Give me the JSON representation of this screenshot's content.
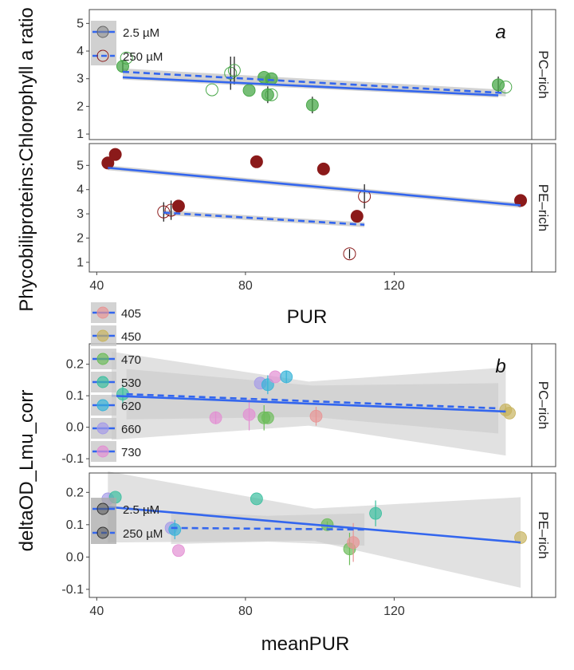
{
  "colors": {
    "trend_line": "#3366ee",
    "ribbon": "#c8c8c8",
    "ribbon_dark": "#a8a8a8",
    "pc_rich_filled": "#4aa84a",
    "pe_rich_filled": "#8b1a1a",
    "axis": "#444444",
    "text": "#222222"
  },
  "chart_data": [
    {
      "type": "scatter",
      "panel_label": "a",
      "ylabel": "Phycobiliproteins:Chlorophyll a ratio",
      "xlabel": "PUR",
      "xlim": [
        38,
        157
      ],
      "x_ticks": [
        40,
        80,
        120
      ],
      "legend": {
        "placement": "top-left",
        "entries": [
          {
            "label": "2.5 µM",
            "symbol": "filled",
            "line": "solid"
          },
          {
            "label": "250 µM",
            "symbol": "open",
            "line": "dashed"
          }
        ]
      },
      "facets": [
        {
          "strip": "PC–rich",
          "ylim": [
            0.8,
            5.5
          ],
          "y_ticks": [
            1,
            2,
            3,
            4,
            5
          ],
          "color": "#4aa84a",
          "points": [
            {
              "x": 47,
              "y": 3.45,
              "filled": true,
              "err": 0.2
            },
            {
              "x": 48,
              "y": 3.75,
              "filled": false,
              "err": 0
            },
            {
              "x": 71,
              "y": 2.6,
              "filled": false,
              "err": 0
            },
            {
              "x": 76,
              "y": 3.2,
              "filled": false,
              "err": 0.6
            },
            {
              "x": 77,
              "y": 3.3,
              "filled": false,
              "err": 0.5
            },
            {
              "x": 81,
              "y": 2.58,
              "filled": true,
              "err": 0
            },
            {
              "x": 85,
              "y": 3.05,
              "filled": true,
              "err": 0
            },
            {
              "x": 86,
              "y": 2.42,
              "filled": true,
              "err": 0.3
            },
            {
              "x": 87,
              "y": 3.0,
              "filled": true,
              "err": 0
            },
            {
              "x": 87,
              "y": 2.42,
              "filled": false,
              "err": 0
            },
            {
              "x": 98,
              "y": 2.05,
              "filled": true,
              "err": 0.3
            },
            {
              "x": 148,
              "y": 2.78,
              "filled": true,
              "err": 0.3
            },
            {
              "x": 150,
              "y": 2.7,
              "filled": false,
              "err": 0
            }
          ],
          "fits": [
            {
              "style": "solid",
              "x": [
                47,
                148
              ],
              "y": [
                3.05,
                2.4
              ],
              "ribbon": 0.08
            },
            {
              "style": "dashed",
              "x": [
                47,
                150
              ],
              "y": [
                3.25,
                2.48
              ],
              "ribbon": 0.12
            }
          ]
        },
        {
          "strip": "PE–rich",
          "ylim": [
            0.6,
            5.9
          ],
          "y_ticks": [
            1,
            2,
            3,
            4,
            5
          ],
          "color": "#8b1a1a",
          "points": [
            {
              "x": 43,
              "y": 5.1,
              "filled": true,
              "err": 0
            },
            {
              "x": 45,
              "y": 5.45,
              "filled": true,
              "err": 0
            },
            {
              "x": 58,
              "y": 3.08,
              "filled": false,
              "err": 0.4
            },
            {
              "x": 60,
              "y": 3.15,
              "filled": false,
              "err": 0.4
            },
            {
              "x": 62,
              "y": 3.32,
              "filled": true,
              "err": 0
            },
            {
              "x": 83,
              "y": 5.15,
              "filled": true,
              "err": 0
            },
            {
              "x": 101,
              "y": 4.85,
              "filled": true,
              "err": 0
            },
            {
              "x": 108,
              "y": 1.35,
              "filled": false,
              "err": 0.2
            },
            {
              "x": 110,
              "y": 2.9,
              "filled": true,
              "err": 0
            },
            {
              "x": 112,
              "y": 3.72,
              "filled": false,
              "err": 0.5
            },
            {
              "x": 154,
              "y": 3.55,
              "filled": true,
              "err": 0
            }
          ],
          "fits": [
            {
              "style": "solid",
              "x": [
                43,
                154
              ],
              "y": [
                4.9,
                3.35
              ],
              "ribbon": 0.1
            },
            {
              "style": "dashed",
              "x": [
                58,
                112
              ],
              "y": [
                3.05,
                2.55
              ],
              "ribbon": 0.1
            }
          ]
        }
      ]
    },
    {
      "type": "scatter",
      "panel_label": "b",
      "ylabel": "deltaOD_Lmu_corr",
      "xlabel": "meanPUR",
      "xlim": [
        38,
        157
      ],
      "x_ticks": [
        40,
        80,
        120
      ],
      "legend": {
        "placement": "top-left",
        "entries": [
          {
            "label": "405",
            "color": "#e89595"
          },
          {
            "label": "450",
            "color": "#c8b460"
          },
          {
            "label": "470",
            "color": "#6cbc5a"
          },
          {
            "label": "530",
            "color": "#3cbf9f"
          },
          {
            "label": "620",
            "color": "#38b4d8"
          },
          {
            "label": "660",
            "color": "#a59be8"
          },
          {
            "label": "730",
            "color": "#e38fd3"
          }
        ]
      },
      "legend2": {
        "placement": "left",
        "entries": [
          {
            "label": "2.5 µM",
            "line": "solid"
          },
          {
            "label": "250 µM",
            "line": "dashed"
          }
        ]
      },
      "facets": [
        {
          "strip": "PC–rich",
          "ylim": [
            -0.125,
            0.265
          ],
          "y_ticks": [
            -0.1,
            0.0,
            0.1,
            0.2
          ],
          "y_tick_labels": [
            "-0.1",
            "0.0",
            "0.1",
            "0.2"
          ],
          "points": [
            {
              "x": 47,
              "y": 0.105,
              "color": "#3cbf9f",
              "err": 0.03
            },
            {
              "x": 72,
              "y": 0.03,
              "color": "#e38fd3",
              "err": 0.02
            },
            {
              "x": 81,
              "y": 0.04,
              "color": "#e38fd3",
              "err": 0.05
            },
            {
              "x": 84,
              "y": 0.14,
              "color": "#a59be8",
              "err": 0
            },
            {
              "x": 85,
              "y": 0.03,
              "color": "#6cbc5a",
              "err": 0.04
            },
            {
              "x": 86,
              "y": 0.135,
              "color": "#38b4d8",
              "err": 0.03
            },
            {
              "x": 86,
              "y": 0.03,
              "color": "#6cbc5a",
              "err": 0
            },
            {
              "x": 88,
              "y": 0.16,
              "color": "#e38fd3",
              "err": 0
            },
            {
              "x": 91,
              "y": 0.16,
              "color": "#38b4d8",
              "err": 0.02
            },
            {
              "x": 99,
              "y": 0.035,
              "color": "#e89595",
              "err": 0.03
            },
            {
              "x": 150,
              "y": 0.055,
              "color": "#c8b460",
              "err": 0.015
            },
            {
              "x": 151,
              "y": 0.045,
              "color": "#c8b460",
              "err": 0
            }
          ],
          "fits": [
            {
              "style": "solid",
              "x": [
                44,
                150
              ],
              "y": [
                0.1,
                0.05
              ],
              "ribbon": [
                0.14,
                0.07,
                0.14
              ]
            },
            {
              "style": "dashed",
              "x": [
                48,
                148
              ],
              "y": [
                0.105,
                0.06
              ],
              "ribbon": [
                0.08,
                0.05,
                0.08
              ]
            }
          ]
        },
        {
          "strip": "PE–rich",
          "ylim": [
            -0.125,
            0.26
          ],
          "y_ticks": [
            -0.1,
            0.0,
            0.1,
            0.2
          ],
          "y_tick_labels": [
            "-0.1",
            "0.0",
            "0.1",
            "0.2"
          ],
          "points": [
            {
              "x": 43,
              "y": 0.18,
              "color": "#a59be8",
              "err": 0
            },
            {
              "x": 45,
              "y": 0.185,
              "color": "#3cbf9f",
              "err": 0
            },
            {
              "x": 60,
              "y": 0.09,
              "color": "#a59be8",
              "err": 0
            },
            {
              "x": 61,
              "y": 0.085,
              "color": "#38b4d8",
              "err": 0.03
            },
            {
              "x": 62,
              "y": 0.02,
              "color": "#e38fd3",
              "err": 0
            },
            {
              "x": 83,
              "y": 0.18,
              "color": "#3cbf9f",
              "err": 0
            },
            {
              "x": 102,
              "y": 0.1,
              "color": "#6cbc5a",
              "err": 0.01
            },
            {
              "x": 108,
              "y": 0.025,
              "color": "#6cbc5a",
              "err": 0.05
            },
            {
              "x": 109,
              "y": 0.045,
              "color": "#e89595",
              "err": 0.06
            },
            {
              "x": 115,
              "y": 0.135,
              "color": "#3cbf9f",
              "err": 0.04
            },
            {
              "x": 154,
              "y": 0.06,
              "color": "#c8b460",
              "err": 0
            }
          ],
          "fits": [
            {
              "style": "solid",
              "x": [
                43,
                154
              ],
              "y": [
                0.155,
                0.045
              ],
              "ribbon": [
                0.11,
                0.05,
                0.14
              ]
            },
            {
              "style": "dashed",
              "x": [
                60,
                112
              ],
              "y": [
                0.09,
                0.085
              ],
              "ribbon": [
                0.05,
                0.04,
                0.05
              ]
            }
          ]
        }
      ]
    }
  ]
}
